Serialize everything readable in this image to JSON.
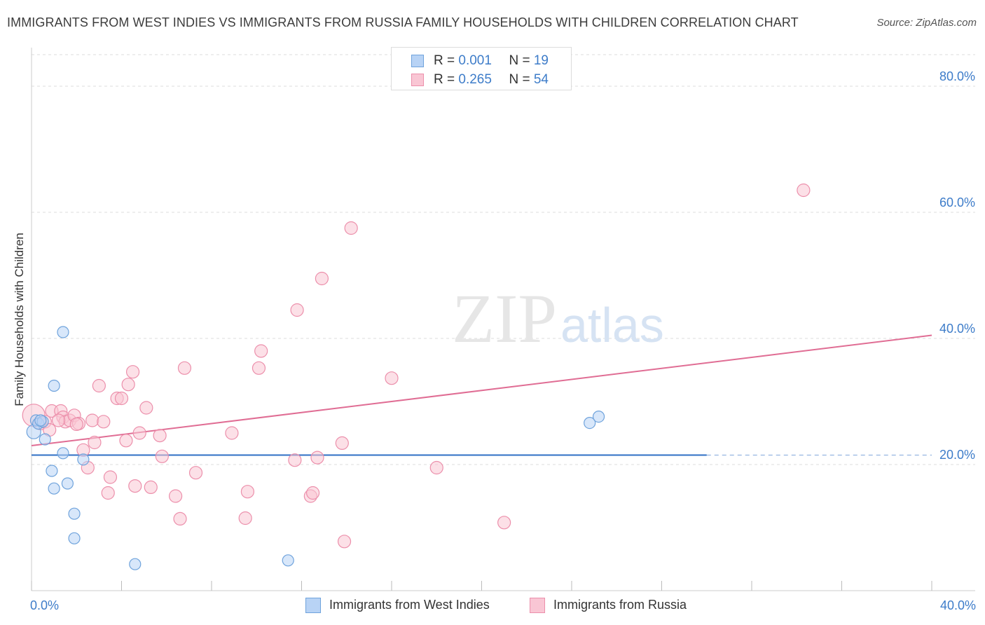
{
  "title": "IMMIGRANTS FROM WEST INDIES VS IMMIGRANTS FROM RUSSIA FAMILY HOUSEHOLDS WITH CHILDREN CORRELATION CHART",
  "source": "Source: ZipAtlas.com",
  "watermark": {
    "zip": "ZIP",
    "atlas": "atlas"
  },
  "legend": {
    "series1": {
      "r_label": "R = ",
      "r_value": "0.001",
      "n_label": "N = ",
      "n_value": "19"
    },
    "series2": {
      "r_label": "R = ",
      "r_value": "0.265",
      "n_label": "N = ",
      "n_value": "54"
    }
  },
  "bottom_legend": {
    "series1_label": "Immigrants from West Indies",
    "series2_label": "Immigrants from Russia"
  },
  "colors": {
    "blue_fill": "#b8d3f5",
    "blue_stroke": "#6fa3dc",
    "blue_line": "#2f6fc4",
    "pink_fill": "#f9c6d4",
    "pink_stroke": "#ec8fab",
    "pink_line": "#e06d94",
    "axis_text": "#3d7cc9",
    "grid": "#dddddd"
  },
  "chart_data": {
    "type": "scatter",
    "title": "IMMIGRANTS FROM WEST INDIES VS IMMIGRANTS FROM RUSSIA FAMILY HOUSEHOLDS WITH CHILDREN CORRELATION CHART",
    "xlabel": "",
    "ylabel": "Family Households with Children",
    "xlim": [
      0,
      40
    ],
    "ylim": [
      0,
      85
    ],
    "x_tick_labels": [
      {
        "value": 0,
        "label": "0.0%"
      },
      {
        "value": 40,
        "label": "40.0%"
      }
    ],
    "y_tick_labels": [
      {
        "value": 20,
        "label": "20.0%"
      },
      {
        "value": 40,
        "label": "40.0%"
      },
      {
        "value": 60,
        "label": "60.0%"
      },
      {
        "value": 80,
        "label": "80.0%"
      }
    ],
    "series": [
      {
        "name": "Immigrants from West Indies",
        "color": "#6fa3dc",
        "points": [
          [
            0.1,
            25.2,
            10
          ],
          [
            0.2,
            27,
            8
          ],
          [
            0.3,
            26.5,
            8
          ],
          [
            0.5,
            26.8,
            8
          ],
          [
            0.6,
            24.0,
            8
          ],
          [
            0.9,
            19.0,
            8
          ],
          [
            1.0,
            16.2,
            8
          ],
          [
            1.4,
            41.0,
            8
          ],
          [
            1.0,
            32.5,
            8
          ],
          [
            1.4,
            21.8,
            8
          ],
          [
            1.6,
            17.0,
            8
          ],
          [
            1.9,
            12.2,
            8
          ],
          [
            1.9,
            8.3,
            8
          ],
          [
            2.3,
            20.8,
            8
          ],
          [
            4.6,
            4.2,
            8
          ],
          [
            11.4,
            4.8,
            8
          ],
          [
            24.8,
            26.6,
            8
          ],
          [
            25.2,
            27.6,
            8
          ],
          [
            0.4,
            27.0,
            8
          ]
        ],
        "trend": {
          "x": [
            0,
            30
          ],
          "y": [
            21.5,
            21.5
          ],
          "dashed_to_x": 40
        }
      },
      {
        "name": "Immigrants from Russia",
        "color": "#ec8fab",
        "points": [
          [
            0.1,
            27.8,
            16
          ],
          [
            0.4,
            26.5,
            9
          ],
          [
            0.6,
            26.8,
            9
          ],
          [
            0.8,
            25.5,
            9
          ],
          [
            0.9,
            28.5,
            9
          ],
          [
            1.3,
            28.5,
            9
          ],
          [
            1.4,
            27.5,
            9
          ],
          [
            1.5,
            26.8,
            9
          ],
          [
            1.7,
            27.0,
            9
          ],
          [
            1.9,
            27.8,
            9
          ],
          [
            2.1,
            26.5,
            9
          ],
          [
            2.3,
            22.3,
            9
          ],
          [
            2.5,
            19.5,
            9
          ],
          [
            2.7,
            27.0,
            9
          ],
          [
            2.8,
            23.5,
            9
          ],
          [
            3.0,
            32.5,
            9
          ],
          [
            3.2,
            26.8,
            9
          ],
          [
            3.4,
            15.5,
            9
          ],
          [
            3.5,
            18.0,
            9
          ],
          [
            3.8,
            30.5,
            9
          ],
          [
            4.0,
            30.5,
            9
          ],
          [
            4.2,
            23.8,
            9
          ],
          [
            4.3,
            32.7,
            9
          ],
          [
            4.5,
            34.7,
            9
          ],
          [
            4.6,
            16.6,
            9
          ],
          [
            4.8,
            25.0,
            9
          ],
          [
            5.1,
            29.0,
            9
          ],
          [
            5.3,
            16.4,
            9
          ],
          [
            5.7,
            24.6,
            9
          ],
          [
            5.8,
            21.3,
            9
          ],
          [
            6.4,
            15.0,
            9
          ],
          [
            6.6,
            11.4,
            9
          ],
          [
            6.8,
            35.3,
            9
          ],
          [
            7.3,
            18.7,
            9
          ],
          [
            8.9,
            25.0,
            9
          ],
          [
            9.5,
            11.5,
            9
          ],
          [
            9.6,
            15.7,
            9
          ],
          [
            10.1,
            35.3,
            9
          ],
          [
            10.2,
            38.0,
            9
          ],
          [
            11.7,
            20.7,
            9
          ],
          [
            11.8,
            44.5,
            9
          ],
          [
            12.4,
            15.0,
            9
          ],
          [
            12.5,
            15.5,
            9
          ],
          [
            12.7,
            21.1,
            9
          ],
          [
            12.9,
            49.5,
            9
          ],
          [
            13.8,
            23.4,
            9
          ],
          [
            13.9,
            7.8,
            9
          ],
          [
            14.2,
            57.5,
            9
          ],
          [
            16.0,
            33.7,
            9
          ],
          [
            18.0,
            19.5,
            9
          ],
          [
            21.0,
            10.8,
            9
          ],
          [
            34.3,
            63.5,
            9
          ],
          [
            2.0,
            26.4,
            9
          ],
          [
            1.2,
            27.0,
            9
          ]
        ],
        "trend": {
          "x": [
            0,
            40
          ],
          "y": [
            23.0,
            40.5
          ]
        }
      }
    ]
  }
}
